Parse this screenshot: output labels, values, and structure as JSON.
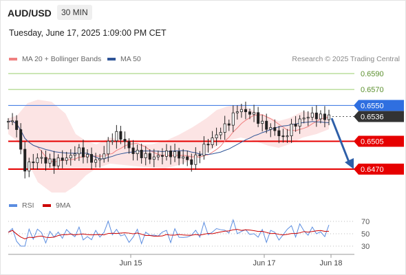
{
  "header": {
    "symbol": "AUD/USD",
    "timeframe": "30 MIN",
    "datetime": "Tuesday, June 17, 2025 1:09:00 PM CET"
  },
  "legend": {
    "ma20": {
      "label": "MA 20 + Bollinger Bands",
      "color": "#f08080"
    },
    "ma50": {
      "label": "MA 50",
      "color": "#2f5597"
    },
    "credit": "Research © 2025 Trading Central"
  },
  "colors": {
    "resistance_green": "#9acd6b",
    "resistance_blue": "#2f6fe0",
    "support_red": "#e60000",
    "last_price_bg": "#333333",
    "arrow": "#2e5fa8",
    "bollinger_fill": "#fce4e4",
    "rsi": "#5b8de0",
    "rsi_ma": "#cc0000"
  },
  "price_levels": [
    {
      "value": "0.6590",
      "kind": "resistance",
      "style": "green"
    },
    {
      "value": "0.6570",
      "kind": "resistance",
      "style": "green"
    },
    {
      "value": "0.6550",
      "kind": "resistance",
      "style": "blue"
    },
    {
      "value": "0.6536",
      "kind": "last",
      "style": "dark"
    },
    {
      "value": "0.6505",
      "kind": "support",
      "style": "red"
    },
    {
      "value": "0.6470",
      "kind": "support",
      "style": "red"
    }
  ],
  "rsi_panel": {
    "legend_rsi": "RSI",
    "legend_ma": "9MA",
    "ticks": [
      "70",
      "50",
      "30"
    ]
  },
  "x_axis": {
    "labels": [
      "Jun 15",
      "Jun 17",
      "Jun 18"
    ]
  },
  "chart_data": {
    "type": "line",
    "title": "AUD/USD",
    "ylim": [
      0.645,
      0.66
    ],
    "x_labels": [
      "Jun 15",
      "Jun 17",
      "Jun 18"
    ],
    "series": [
      {
        "name": "MA 20 + Bollinger Bands"
      },
      {
        "name": "MA 50"
      }
    ],
    "close_approx": [
      0.653,
      0.6528,
      0.647,
      0.6478,
      0.6485,
      0.648,
      0.6478,
      0.6483,
      0.6484,
      0.6495,
      0.6488,
      0.648,
      0.6482,
      0.65,
      0.6515,
      0.6508,
      0.6493,
      0.649,
      0.6486,
      0.6484,
      0.6488,
      0.649,
      0.6488,
      0.6484,
      0.6478,
      0.649,
      0.6502,
      0.651,
      0.652,
      0.653,
      0.6545,
      0.6542,
      0.654,
      0.6528,
      0.6522,
      0.6518,
      0.6508,
      0.6522,
      0.653,
      0.6536,
      0.6538,
      0.6535,
      0.6536
    ],
    "annotations": {
      "resistances": [
        0.659,
        0.657,
        0.655
      ],
      "last": 0.6536,
      "supports": [
        0.6505,
        0.647
      ],
      "forecast": "down toward 0.6470"
    },
    "rsi": {
      "levels": [
        70,
        50,
        30
      ]
    }
  }
}
